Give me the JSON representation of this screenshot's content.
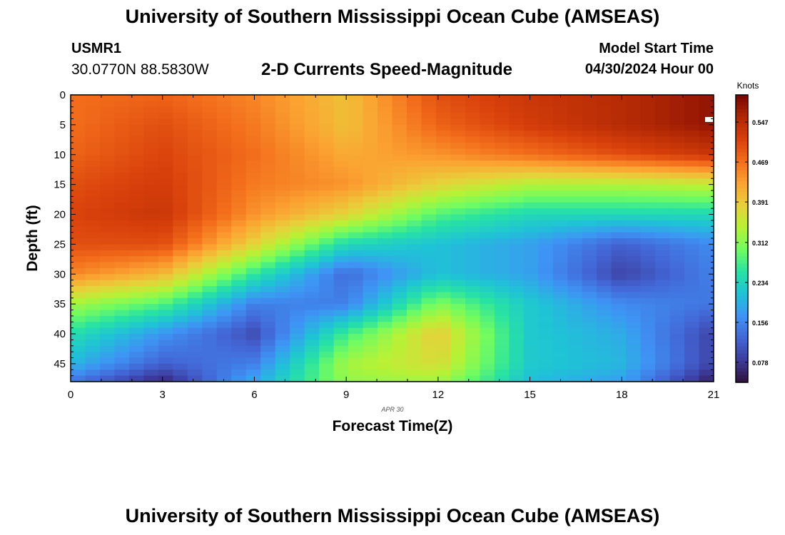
{
  "page": {
    "title_top": "University of Southern Mississippi Ocean Cube (AMSEAS)",
    "title_bottom": "University of Southern Mississippi Ocean Cube (AMSEAS)",
    "station_id": "USMR1",
    "station_coords": "30.0770N  88.5830W",
    "subtitle": "2-D Currents Speed-Magnitude",
    "model_start_label": "Model Start Time",
    "model_start_value": "04/30/2024 Hour 00"
  },
  "chart_data": {
    "type": "heatmap",
    "title": "2-D Currents Speed-Magnitude",
    "xlabel": "Forecast Time(Z)",
    "ylabel": "Depth (ft)",
    "date_label": "APR 30",
    "x_ticks": [
      0,
      3,
      6,
      9,
      12,
      15,
      18,
      21
    ],
    "y_ticks": [
      0,
      5,
      10,
      15,
      20,
      25,
      30,
      35,
      40,
      45
    ],
    "xlim": [
      0,
      21
    ],
    "ylim": [
      0,
      48
    ],
    "colorbar": {
      "unit": "Knots",
      "ticks": [
        0.078,
        0.156,
        0.234,
        0.312,
        0.391,
        0.469,
        0.547
      ],
      "range": [
        0.039,
        0.6
      ],
      "colors": [
        "#30123b",
        "#3d3c9b",
        "#4366d6",
        "#3e94f5",
        "#1fc3d6",
        "#27e2a4",
        "#71fc60",
        "#b6f236",
        "#e8d03a",
        "#fba332",
        "#f36d1b",
        "#d8400b",
        "#b02704",
        "#7a0403"
      ]
    },
    "grid": {
      "x_times": [
        0,
        3,
        6,
        9,
        12,
        15,
        18,
        21
      ],
      "depths": [
        0,
        5,
        10,
        15,
        20,
        25,
        30,
        35,
        40,
        45,
        48
      ],
      "speeds": [
        [
          0.47,
          0.48,
          0.45,
          0.4,
          0.5,
          0.53,
          0.55,
          0.58
        ],
        [
          0.47,
          0.5,
          0.46,
          0.4,
          0.48,
          0.52,
          0.55,
          0.58
        ],
        [
          0.48,
          0.51,
          0.47,
          0.42,
          0.44,
          0.47,
          0.5,
          0.53
        ],
        [
          0.5,
          0.52,
          0.46,
          0.44,
          0.38,
          0.34,
          0.34,
          0.35
        ],
        [
          0.51,
          0.53,
          0.44,
          0.38,
          0.28,
          0.24,
          0.24,
          0.24
        ],
        [
          0.5,
          0.5,
          0.38,
          0.24,
          0.21,
          0.18,
          0.12,
          0.16
        ],
        [
          0.45,
          0.41,
          0.26,
          0.13,
          0.21,
          0.18,
          0.09,
          0.15
        ],
        [
          0.33,
          0.28,
          0.15,
          0.15,
          0.31,
          0.22,
          0.16,
          0.14
        ],
        [
          0.25,
          0.17,
          0.1,
          0.27,
          0.39,
          0.22,
          0.19,
          0.09
        ],
        [
          0.2,
          0.12,
          0.15,
          0.33,
          0.37,
          0.22,
          0.2,
          0.09
        ],
        [
          0.14,
          0.06,
          0.19,
          0.32,
          0.33,
          0.21,
          0.18,
          0.05
        ]
      ]
    }
  }
}
